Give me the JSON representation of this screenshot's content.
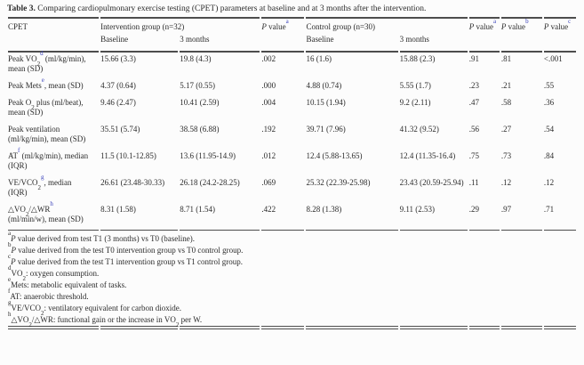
{
  "title": {
    "prefix": "Table 3.",
    "text": " Comparing cardiopulmonary exercise testing (CPET) parameters at baseline and at 3 months after the intervention."
  },
  "colors": {
    "superscript_accent": "#3c44bb",
    "text": "#2b2b2b",
    "rule": "#4d4d4d",
    "background": "#fcfcfc"
  },
  "table": {
    "header": {
      "cpet": "CPET",
      "intervention_group": "Intervention group (n=32)",
      "control_group": "Control group (n=30)",
      "p_a_1": [
        {
          "i": "P"
        },
        {
          "t": " value"
        },
        {
          "sup": "a"
        }
      ],
      "p_a_2": [
        {
          "i": "P"
        },
        {
          "t": " value"
        },
        {
          "sup": "a"
        }
      ],
      "p_b": [
        {
          "i": "P"
        },
        {
          "t": " value"
        },
        {
          "sup": "b"
        }
      ],
      "p_c": [
        {
          "i": "P"
        },
        {
          "t": " value"
        },
        {
          "sup": "c"
        }
      ],
      "baseline_1": "Baseline",
      "months_1": "3 months",
      "baseline_2": "Baseline",
      "months_2": "3 months"
    },
    "rows": [
      {
        "label": [
          {
            "t": "Peak VO"
          },
          {
            "sub": "2"
          },
          {
            "sup": "d"
          },
          {
            "t": " (ml/kg/min), mean (SD)"
          }
        ],
        "cells": [
          "15.66 (3.3)",
          "19.8 (4.3)",
          ".002",
          "16 (1.6)",
          "15.88 (2.3)",
          ".91",
          ".81",
          "<.001"
        ]
      },
      {
        "label": [
          {
            "t": "Peak Mets"
          },
          {
            "sup": "e"
          },
          {
            "t": ", mean (SD)"
          }
        ],
        "cells": [
          "4.37 (0.64)",
          "5.17 (0.55)",
          ".000",
          "4.88 (0.74)",
          "5.55 (1.7)",
          ".23",
          ".21",
          ".55"
        ]
      },
      {
        "label": [
          {
            "t": "Peak O"
          },
          {
            "sub": "2"
          },
          {
            "t": " plus (ml/beat), mean (SD)"
          }
        ],
        "cells": [
          "9.46 (2.47)",
          "10.41 (2.59)",
          ".004",
          "10.15 (1.94)",
          "9.2 (2.11)",
          ".47",
          ".58",
          ".36"
        ]
      },
      {
        "label": [
          {
            "t": "Peak ventilation (ml/kg/min), mean (SD)"
          }
        ],
        "cells": [
          "35.51 (5.74)",
          "38.58 (6.88)",
          ".192",
          "39.71 (7.96)",
          "41.32 (9.52)",
          ".56",
          ".27",
          ".54"
        ]
      },
      {
        "label": [
          {
            "t": "AT"
          },
          {
            "sup": "f"
          },
          {
            "t": " (ml/kg/min), median (IQR)"
          }
        ],
        "cells": [
          "11.5 (10.1-12.85)",
          "13.6 (11.95-14.9)",
          ".012",
          "12.4 (5.88-13.65)",
          "12.4 (11.35-16.4)",
          ".75",
          ".73",
          ".84"
        ]
      },
      {
        "label": [
          {
            "t": "VE/VCO"
          },
          {
            "sub": "2"
          },
          {
            "sup": "g"
          },
          {
            "t": ", median (IQR)"
          }
        ],
        "cells": [
          "26.61 (23.48-30.33)",
          "26.18 (24.2-28.25)",
          ".069",
          "25.32 (22.39-25.98)",
          "23.43 (20.59-25.94)",
          ".11",
          ".12",
          ".12"
        ]
      },
      {
        "label": [
          {
            "t": "△VO"
          },
          {
            "sub": "2"
          },
          {
            "t": "/△WR"
          },
          {
            "sup": "h"
          },
          {
            "t": " (ml/min/w), mean (SD)"
          }
        ],
        "cells": [
          "8.31 (1.58)",
          "8.71 (1.54)",
          ".422",
          "8.28 (1.38)",
          "9.11 (2.53)",
          ".29",
          ".97",
          ".71"
        ]
      }
    ]
  },
  "footnotes": [
    [
      {
        "sup": "a"
      },
      {
        "i": "P"
      },
      {
        "t": " value derived from test T1 (3 months) vs T0 (baseline)."
      }
    ],
    [
      {
        "sup": "b"
      },
      {
        "i": "P"
      },
      {
        "t": " value derived from the test T0 intervention group vs T0 control group."
      }
    ],
    [
      {
        "sup": "c"
      },
      {
        "i": "P"
      },
      {
        "t": " value derived from the test T1 intervention group vs T1 control group."
      }
    ],
    [
      {
        "sup": "d"
      },
      {
        "t": "VO"
      },
      {
        "sub": "2"
      },
      {
        "t": ": oxygen consumption."
      }
    ],
    [
      {
        "sup": "e"
      },
      {
        "t": "Mets: metabolic equivalent of tasks."
      }
    ],
    [
      {
        "sup": "f"
      },
      {
        "t": "AT: anaerobic threshold."
      }
    ],
    [
      {
        "sup": "g"
      },
      {
        "t": "VE/VCO"
      },
      {
        "sub": "2"
      },
      {
        "t": ": ventilatory equivalent for carbon dioxide."
      }
    ],
    [
      {
        "sup": "h"
      },
      {
        "t": "△VO"
      },
      {
        "sub": "2"
      },
      {
        "t": "/△WR: functional gain or the increase in VO"
      },
      {
        "sub": "2"
      },
      {
        "t": " per W."
      }
    ]
  ]
}
